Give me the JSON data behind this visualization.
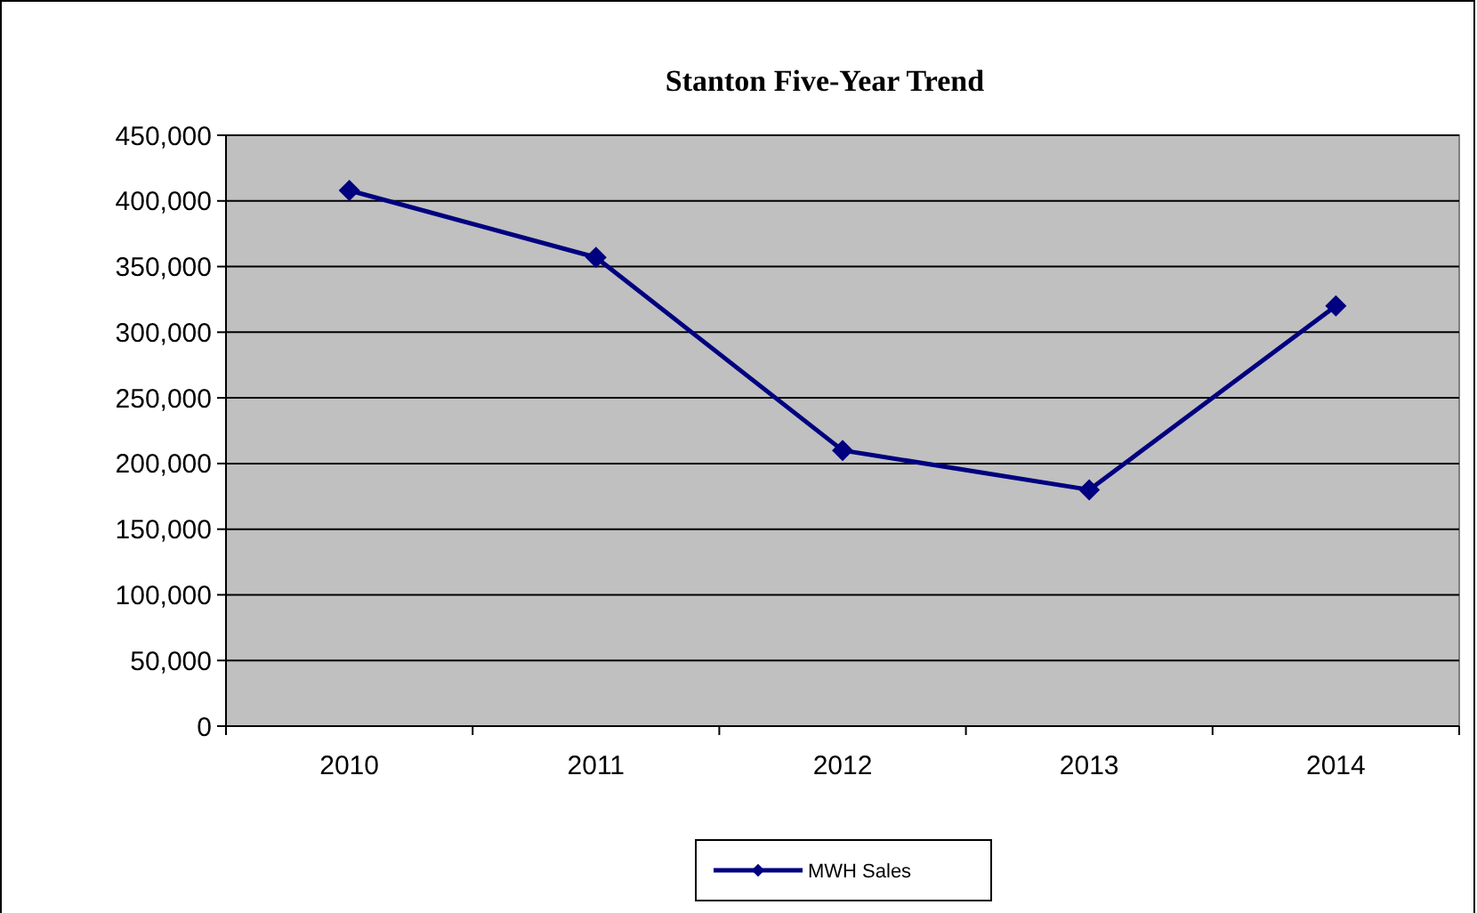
{
  "chart_data": {
    "type": "line",
    "title": "Stanton Five-Year Trend",
    "categories": [
      "2010",
      "2011",
      "2012",
      "2013",
      "2014"
    ],
    "series": [
      {
        "name": "MWH Sales",
        "color": "#000080",
        "values": [
          408000,
          357000,
          210000,
          180000,
          320000
        ]
      }
    ],
    "ylim": [
      0,
      450000
    ],
    "yticks": [
      {
        "value": 0,
        "label": "0"
      },
      {
        "value": 50000,
        "label": "50,000"
      },
      {
        "value": 100000,
        "label": "100,000"
      },
      {
        "value": 150000,
        "label": "150,000"
      },
      {
        "value": 200000,
        "label": "200,000"
      },
      {
        "value": 250000,
        "label": "250,000"
      },
      {
        "value": 300000,
        "label": "300,000"
      },
      {
        "value": 350000,
        "label": "350,000"
      },
      {
        "value": 400000,
        "label": "400,000"
      },
      {
        "value": 450000,
        "label": "450,000"
      }
    ],
    "grid": "y",
    "legend": "bottom",
    "marker": "diamond",
    "line_style": "solid"
  }
}
